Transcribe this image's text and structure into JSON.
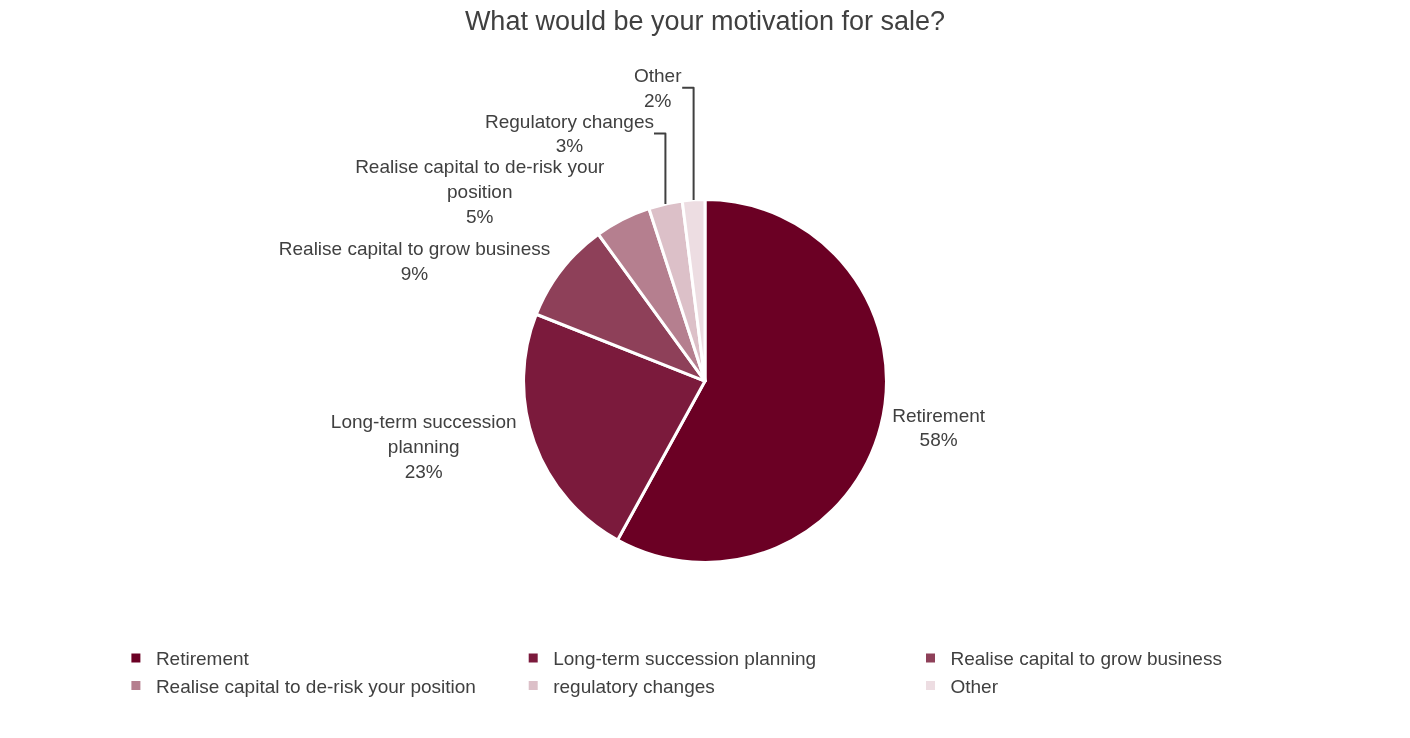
{
  "chart_data": {
    "type": "pie",
    "title": "What would be your motivation for sale?",
    "categories": [
      "Retirement",
      "Long-term succession planning",
      "Realise capital to grow business",
      "Realise capital to de-risk your position",
      "regulatory changes",
      "Other"
    ],
    "values": [
      58,
      23,
      9,
      5,
      3,
      2
    ],
    "colors": [
      "#6b0024",
      "#7b1a3c",
      "#8e4059",
      "#b57f8f",
      "#dcc0c8",
      "#eddde2"
    ],
    "value_labels": [
      "Retirement\n58%",
      "Long-term succession\nplanning\n23%",
      "Realise capital to grow business\n9%",
      "Realise capital to de-risk your\nposition\n5%",
      "Regulatory changes\n3%",
      "Other\n2%"
    ],
    "legend": "bottom"
  }
}
